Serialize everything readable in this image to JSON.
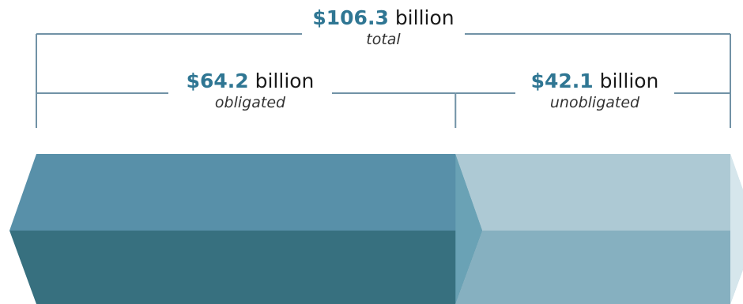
{
  "labels": {
    "total": {
      "amount": "$106.3",
      "unit": "billion",
      "caption": "total"
    },
    "obligated": {
      "amount": "$64.2",
      "unit": "billion",
      "caption": "obligated"
    },
    "unobligated": {
      "amount": "$42.1",
      "unit": "billion",
      "caption": "unobligated"
    }
  },
  "colors": {
    "obligated_top": "#5890a9",
    "obligated_front": "#37707f",
    "obligated_end": "#6aa2b5",
    "unobligated_top": "#adc9d4",
    "unobligated_front": "#86b0c0",
    "unobligated_end": "#d6e6ec",
    "bracket": "#7192a6",
    "amount_text": "#2f7693"
  },
  "chart_data": {
    "type": "bar",
    "orientation": "horizontal",
    "stacked": true,
    "categories": [
      "total"
    ],
    "series": [
      {
        "name": "obligated",
        "values": [
          64.2
        ]
      },
      {
        "name": "unobligated",
        "values": [
          42.1
        ]
      }
    ],
    "total": 106.3,
    "unit": "$ billion"
  }
}
